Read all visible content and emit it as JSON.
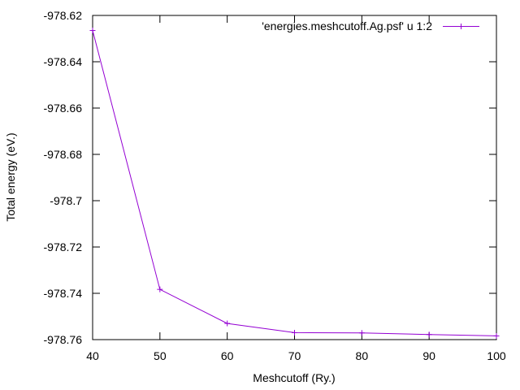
{
  "chart_data": {
    "type": "line",
    "xlabel": "Meshcutoff (Ry.)",
    "ylabel": "Total energy (eV.)",
    "xlim": [
      40,
      100
    ],
    "ylim": [
      -978.76,
      -978.62
    ],
    "x_ticks": [
      {
        "value": 40,
        "label": "40"
      },
      {
        "value": 50,
        "label": "50"
      },
      {
        "value": 60,
        "label": "60"
      },
      {
        "value": 70,
        "label": "70"
      },
      {
        "value": 80,
        "label": "80"
      },
      {
        "value": 90,
        "label": "90"
      },
      {
        "value": 100,
        "label": "100"
      }
    ],
    "y_ticks": [
      {
        "value": -978.62,
        "label": "-978.62"
      },
      {
        "value": -978.64,
        "label": "-978.64"
      },
      {
        "value": -978.66,
        "label": "-978.66"
      },
      {
        "value": -978.68,
        "label": "-978.68"
      },
      {
        "value": -978.7,
        "label": "-978.7"
      },
      {
        "value": -978.72,
        "label": "-978.72"
      },
      {
        "value": -978.74,
        "label": "-978.74"
      },
      {
        "value": -978.76,
        "label": "-978.76"
      }
    ],
    "grid": false,
    "legend_position": "top-right",
    "series": [
      {
        "name": "'energies.meshcutoff.Ag.psf' u 1:2",
        "color": "#9400d3",
        "marker": "plus",
        "x": [
          40,
          50,
          60,
          70,
          80,
          90,
          100
        ],
        "y": [
          -978.6265,
          -978.7383,
          -978.753,
          -978.757,
          -978.7571,
          -978.7578,
          -978.7584
        ]
      }
    ]
  }
}
